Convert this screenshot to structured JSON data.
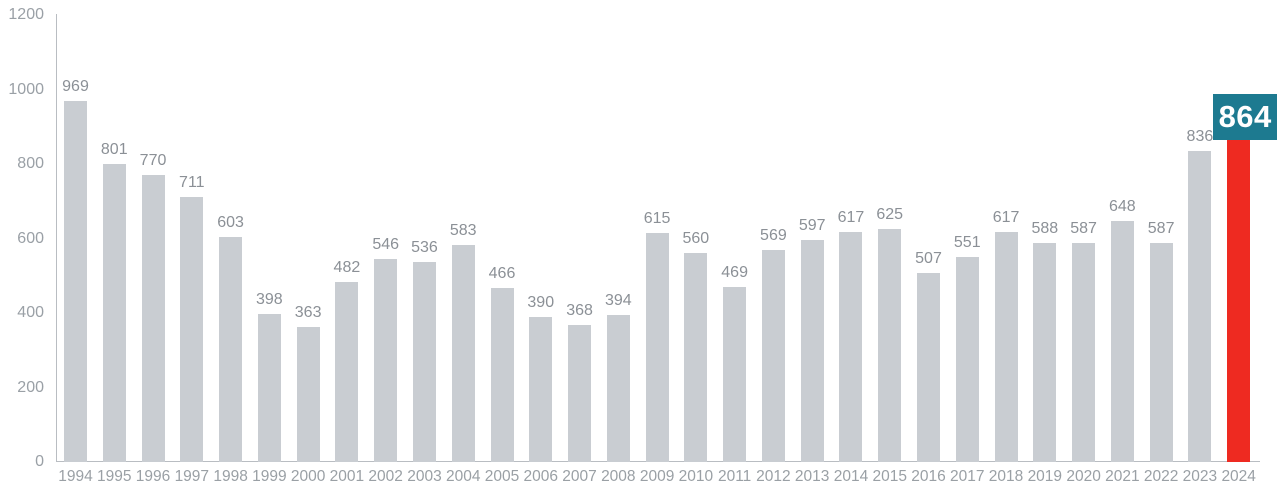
{
  "chart_data": {
    "type": "bar",
    "title": "",
    "xlabel": "",
    "ylabel": "",
    "categories": [
      "1994",
      "1995",
      "1996",
      "1997",
      "1998",
      "1999",
      "2000",
      "2001",
      "2002",
      "2003",
      "2004",
      "2005",
      "2006",
      "2007",
      "2008",
      "2009",
      "2010",
      "2011",
      "2012",
      "2013",
      "2014",
      "2015",
      "2016",
      "2017",
      "2018",
      "2019",
      "2020",
      "2021",
      "2022",
      "2023",
      "2024"
    ],
    "values": [
      969,
      801,
      770,
      711,
      603,
      398,
      363,
      482,
      546,
      536,
      583,
      466,
      390,
      368,
      394,
      615,
      560,
      469,
      569,
      597,
      617,
      625,
      507,
      551,
      617,
      588,
      587,
      648,
      587,
      836,
      864
    ],
    "ylim": [
      0,
      1200
    ],
    "yticks": [
      0,
      200,
      400,
      600,
      800,
      1000,
      1200
    ],
    "grid": false,
    "legend": null,
    "value_labels_shown": true,
    "highlight": {
      "category": "2024",
      "index": 30,
      "value": 864,
      "label": "864"
    },
    "colors": {
      "bar": "#c9cdd2",
      "highlight_bar": "#ee2a21",
      "highlight_label_bg": "#1d7a90",
      "highlight_label_text": "#ffffff",
      "value_label": "#8b9096",
      "axis_tick_label": "#9aa0a6",
      "axis_line": "#b9bdc2"
    }
  }
}
